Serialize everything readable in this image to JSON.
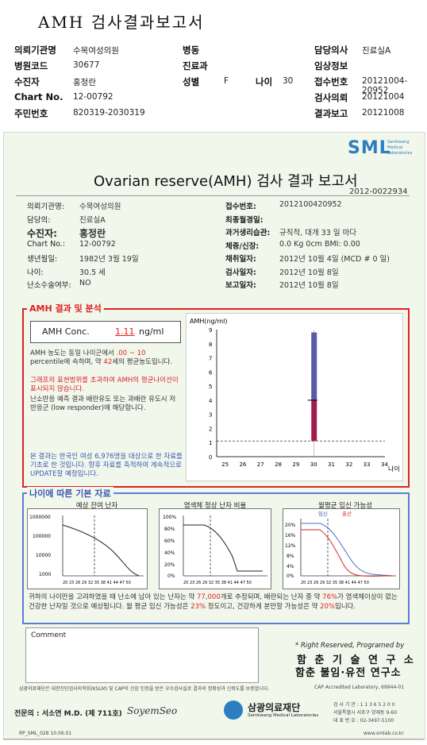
{
  "header": {
    "title": "AMH 검사결과보고서",
    "rows": [
      [
        {
          "k": "의뢰기관명",
          "v": "수목여성의원"
        },
        {
          "k": "병동",
          "v": ""
        },
        {
          "k": "담당의사",
          "v": "진료실A"
        }
      ],
      [
        {
          "k": "병원코드",
          "v": "30677"
        },
        {
          "k": "진료과",
          "v": ""
        },
        {
          "k": "임상정보",
          "v": ""
        }
      ],
      [
        {
          "k": "수진자",
          "v": "홍정란"
        },
        {
          "k": "성별",
          "v": "F"
        },
        {
          "k": "접수번호",
          "v": "20121004-20952"
        }
      ],
      [
        {
          "k": "Chart No.",
          "v": "12-00792"
        },
        {
          "k": "",
          "v": ""
        },
        {
          "k": "검사의뢰",
          "v": "20121004"
        }
      ],
      [
        {
          "k": "주민번호",
          "v": "820319-2030319"
        },
        {
          "k": "",
          "v": ""
        },
        {
          "k": "결과보고",
          "v": "20121008"
        }
      ]
    ],
    "age_label": "나이",
    "age_value": "30"
  },
  "logo": {
    "text": "SML",
    "sub": [
      "Samkwang",
      "Medical",
      "Laboratories"
    ]
  },
  "report": {
    "title": "Ovarian reserve(AMH) 검사 결과 보고서",
    "ref_no": "2012-0022934",
    "left": [
      {
        "k": "의뢰기관명:",
        "v": "수목여성의원"
      },
      {
        "k": "담당의:",
        "v": "진료실A"
      },
      {
        "k": "수진자:",
        "v": "홍정란"
      },
      {
        "k": "Chart No.:",
        "v": "12-00792"
      },
      {
        "k": "생년월일:",
        "v": "1982년 3월 19일"
      },
      {
        "k": "나이:",
        "v": "30.5 세"
      },
      {
        "k": "난소수술여부:",
        "v": "NO"
      }
    ],
    "right": [
      {
        "k": "접수번호:",
        "v": "201210042095​2"
      },
      {
        "k": "최종월경일:",
        "v": ""
      },
      {
        "k": "과거생리습관:",
        "v": "규칙적, 대개  33 일 마다"
      },
      {
        "k": "체중/신장:",
        "v": "0.0 Kg       0cm    BMI:   0.00"
      },
      {
        "k": "채취일자:",
        "v": "2012년 10월 4일   (MCD #  0 일)"
      },
      {
        "k": "검사일자:",
        "v": "2012년 10월 8일"
      },
      {
        "k": "보고일자:",
        "v": "2012년 10월 8일"
      }
    ]
  },
  "amh": {
    "section_title": "AMH 결과 및 분석",
    "conc_label": "AMH Conc.",
    "conc_value": "1.11",
    "conc_unit": "ng/ml",
    "p1a": "AMH 농도는 동일 나이군에서 ",
    "p1b": ".00 ~ 10",
    "p1c": "percentile에 속하며, 약 ",
    "p1d": "42",
    "p1e": "세의 평균농도입니다.",
    "p2": "그래프의 표현범위를 초과하여 AMH의 평균나이선이 표시되지 않습니다.",
    "p3": "난소반응 예측 결과 배란유도 또는 과배란 유도시 저반응군 (low responder)에 해당합니다.",
    "p4": "본 결과는 한국인 여성 6,976명을 대상으로 한 자료를 기초로 한 것입니다. 향후 자료를 축적하여 계속적으로 UPDATE할 예정입니다."
  },
  "chart_data": {
    "type": "bar",
    "ylabel": "AMH(ng/ml)",
    "xlabel": "나이",
    "x_ticks": [
      "25",
      "26",
      "27",
      "28",
      "29",
      "30",
      "31",
      "32",
      "33",
      "34"
    ],
    "y_ticks": [
      "0",
      "1",
      "2",
      "3",
      "4",
      "5",
      "6",
      "7",
      "8",
      "9"
    ],
    "ylim": [
      0,
      9
    ],
    "range_bar": {
      "age": "30",
      "low": 4.0,
      "high": 8.8,
      "color": "#5a5aa8"
    },
    "value_bar": {
      "age": "30",
      "low": 1.11,
      "high": 4.0,
      "color": "#a01c50"
    },
    "reference_line": 1.11
  },
  "basic": {
    "section_title": "나이에 따른 기본 자료",
    "c1_title": "예상 잔여 난자",
    "c1_y": [
      "1000000",
      "100000",
      "10000",
      "1000"
    ],
    "c2_title": "염색체 정상 난자 비율",
    "c2_y": [
      "100%",
      "80%",
      "60%",
      "40%",
      "20%",
      "0%"
    ],
    "c3_title": "월평균 임신 가능성",
    "c3_legend1": "임신",
    "c3_legend2": "출산",
    "c3_y": [
      "20%",
      "16%",
      "12%",
      "8%",
      "4%",
      "0%"
    ],
    "x_ticks": "20 23 26 29 32 35 38 41 44 47 50",
    "summary_a": "귀하의 나이만을 고려하였을 때 난소에 남아 있는 난자는 약 ",
    "summary_b": "77,000",
    "summary_c": "개로 추정되며, 배란되는 난자 중 약 ",
    "summary_d": "76%",
    "summary_e": "가 염색체이상이 없는 건강한 난자일 것으로 예상됩니다. 월 평균 임신 가능성은 ",
    "summary_f": "23%",
    "summary_g": " 정도이고, 건강하게 분만할 가능성은 약 ",
    "summary_h": "20%",
    "summary_i": "입니다."
  },
  "comment": {
    "label": "Comment"
  },
  "footer": {
    "rights": "* Right Reserved, Programed by",
    "lab1": "함 춘 기 술 연 구 소",
    "lab2": "함춘 불임·유전 연구소",
    "cert": "삼광의료재단은 대한진단검사의학회(KSLM) 및 CAP의 신임 인증을 받은 우수검사실로 결과의 정확성과 신뢰도를 보증합니다.",
    "cap": "CAP  Accredited  Laboratory,   69944-01",
    "doctor": "전문의 : 서소연 M.D. (제 711호)",
    "sign": "SoyemSeo",
    "foundation": "삼광의료재단",
    "foundation_en": "Samkwang Medical Laboratories",
    "contact1": "검 사 기 관 : 1 1 3 6 5 2 0 0",
    "contact2": "서울특별시 서초구 양재동 9-60",
    "contact3": "대 표 번 호 : 02-3497-5100",
    "form": "RP_SML_028 10.06.01",
    "url": "www.smlab.co.kr"
  }
}
